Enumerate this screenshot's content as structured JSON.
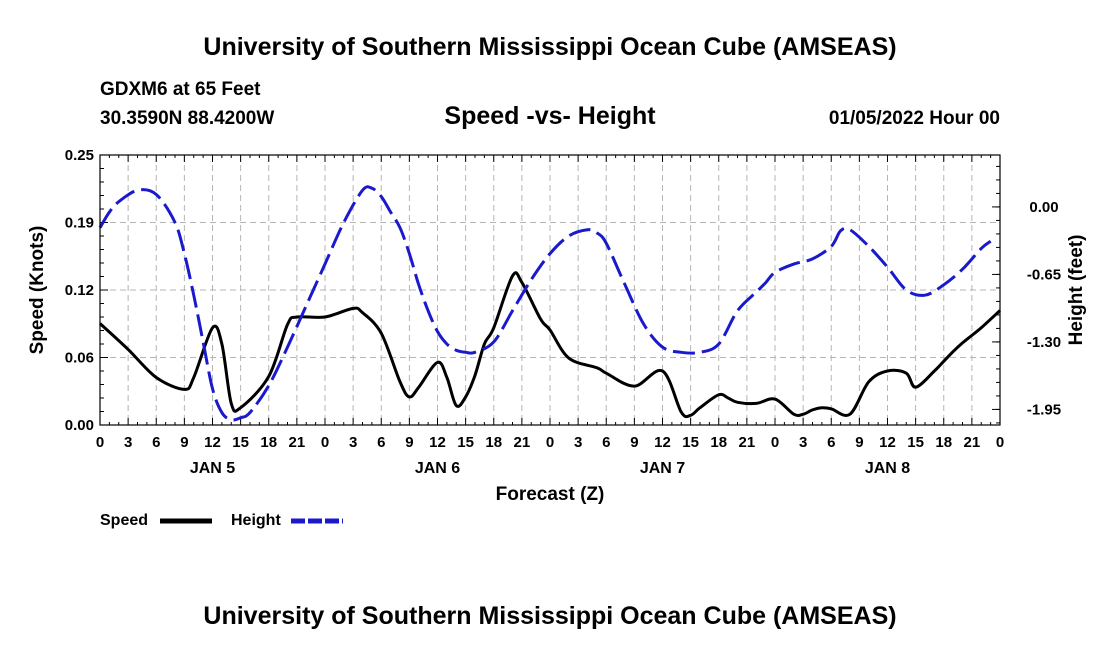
{
  "page": {
    "title": "University of Southern Mississippi Ocean Cube (AMSEAS)",
    "footer_title": "University of Southern Mississippi Ocean Cube (AMSEAS)",
    "station": "GDXM6 at 65 Feet",
    "location": "30.3590N  88.4200W",
    "subtitle": "Speed -vs- Height",
    "date": "01/05/2022 Hour 00"
  },
  "chart_data": {
    "type": "line",
    "title": "Speed -vs- Height",
    "xlabel": "Forecast (Z)",
    "ylabel": "Speed (Knots)",
    "y2label": "Height (feet)",
    "xlim": [
      0,
      96
    ],
    "ylim": [
      0,
      0.25
    ],
    "y2lim": [
      -2.1,
      0.5
    ],
    "x_tick_labels": [
      "0",
      "3",
      "6",
      "9",
      "12",
      "15",
      "18",
      "21",
      "0",
      "3",
      "6",
      "9",
      "12",
      "15",
      "18",
      "21",
      "0",
      "3",
      "6",
      "9",
      "12",
      "15",
      "18",
      "21",
      "0",
      "3",
      "6",
      "9",
      "12",
      "15",
      "18",
      "21",
      "0"
    ],
    "y_ticks": [
      {
        "value": 0.0,
        "label": "0.00"
      },
      {
        "value": 0.0625,
        "label": "0.06"
      },
      {
        "value": 0.125,
        "label": "0.12"
      },
      {
        "value": 0.1875,
        "label": "0.19"
      },
      {
        "value": 0.25,
        "label": "0.25"
      }
    ],
    "y2_ticks": [
      {
        "value": 0.0,
        "label": "0.00"
      },
      {
        "value": -0.65,
        "label": "-0.65"
      },
      {
        "value": -1.3,
        "label": "-1.30"
      },
      {
        "value": -1.95,
        "label": "-1.95"
      }
    ],
    "day_labels": [
      {
        "hour": 12,
        "label": "JAN 5"
      },
      {
        "hour": 36,
        "label": "JAN 6"
      },
      {
        "hour": 60,
        "label": "JAN 7"
      },
      {
        "hour": 84,
        "label": "JAN 8"
      }
    ],
    "series": [
      {
        "name": "Speed",
        "axis": "left",
        "color": "#000000",
        "style": "solid",
        "x": [
          0,
          3,
          6,
          9,
          10,
          12,
          13,
          14,
          15,
          18,
          20,
          21,
          24,
          27,
          28,
          30,
          32,
          33,
          34,
          36,
          37,
          38,
          39,
          40,
          41,
          42,
          44,
          45,
          47,
          48,
          50,
          53,
          54,
          57,
          60,
          62,
          63,
          64,
          66,
          67,
          68,
          70,
          72,
          74,
          75,
          76,
          77,
          78,
          80,
          82,
          84,
          86,
          87,
          89,
          90,
          91,
          92,
          93,
          94,
          96
        ],
        "values": [
          0.094,
          0.07,
          0.044,
          0.033,
          0.044,
          0.09,
          0.075,
          0.02,
          0.016,
          0.045,
          0.093,
          0.1,
          0.1,
          0.108,
          0.104,
          0.085,
          0.04,
          0.026,
          0.035,
          0.058,
          0.044,
          0.018,
          0.026,
          0.046,
          0.075,
          0.09,
          0.138,
          0.132,
          0.098,
          0.088,
          0.062,
          0.053,
          0.048,
          0.036,
          0.05,
          0.012,
          0.009,
          0.016,
          0.028,
          0.025,
          0.021,
          0.02,
          0.024,
          0.01,
          0.01,
          0.014,
          0.016,
          0.015,
          0.01,
          0.04,
          0.05,
          0.048,
          0.035,
          0.05,
          0.059,
          0.068,
          0.076,
          0.083,
          0.09,
          0.106
        ]
      },
      {
        "name": "Height",
        "axis": "right",
        "color": "#1a1acc",
        "style": "dashed",
        "x": [
          0,
          1,
          2,
          4,
          6,
          8,
          9,
          10,
          11,
          12,
          13,
          14,
          15,
          16,
          18,
          20,
          22,
          24,
          26,
          28,
          29,
          30,
          31,
          32,
          33,
          34,
          35,
          36,
          37,
          38,
          39,
          40,
          42,
          44,
          46,
          48,
          50,
          52,
          53,
          54,
          56,
          58,
          60,
          62,
          64,
          66,
          68,
          70,
          71,
          72,
          74,
          76,
          78,
          79,
          80,
          82,
          84,
          86,
          88,
          90,
          92,
          94,
          95
        ],
        "values": [
          -0.2,
          -0.05,
          0.05,
          0.16,
          0.12,
          -0.15,
          -0.45,
          -0.85,
          -1.3,
          -1.75,
          -1.98,
          -2.05,
          -2.03,
          -1.98,
          -1.72,
          -1.35,
          -0.95,
          -0.55,
          -0.15,
          0.16,
          0.18,
          0.1,
          -0.05,
          -0.2,
          -0.45,
          -0.75,
          -1.0,
          -1.2,
          -1.32,
          -1.38,
          -1.4,
          -1.4,
          -1.3,
          -1.0,
          -0.7,
          -0.45,
          -0.28,
          -0.22,
          -0.25,
          -0.35,
          -0.75,
          -1.13,
          -1.35,
          -1.4,
          -1.4,
          -1.32,
          -1.0,
          -0.82,
          -0.73,
          -0.63,
          -0.55,
          -0.5,
          -0.38,
          -0.23,
          -0.22,
          -0.38,
          -0.58,
          -0.8,
          -0.85,
          -0.75,
          -0.6,
          -0.4,
          -0.33
        ]
      }
    ],
    "legend": {
      "position": "bottom-left",
      "items": [
        {
          "label": "Speed",
          "color": "#000000",
          "style": "solid"
        },
        {
          "label": "Height",
          "color": "#1a1acc",
          "style": "dashed"
        }
      ]
    }
  }
}
